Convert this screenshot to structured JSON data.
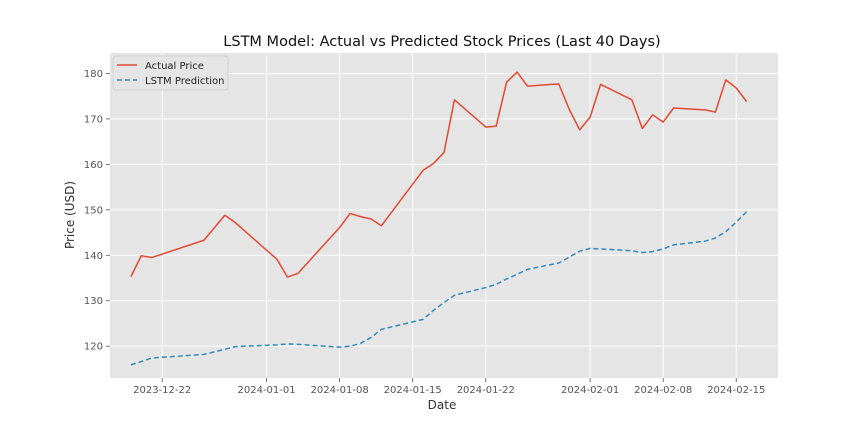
{
  "chart_data": {
    "type": "line",
    "title": "LSTM Model: Actual vs Predicted Stock Prices (Last 40 Days)",
    "xlabel": "Date",
    "ylabel": "Price (USD)",
    "xlim": [
      "2023-12-17",
      "2024-02-19"
    ],
    "ylim": [
      113,
      184.5
    ],
    "x_ticks": [
      {
        "date": "2023-12-22",
        "label": "2023-12-22"
      },
      {
        "date": "2024-01-01",
        "label": "2024-01-01"
      },
      {
        "date": "2024-01-08",
        "label": "2024-01-08"
      },
      {
        "date": "2024-01-15",
        "label": "2024-01-15"
      },
      {
        "date": "2024-01-22",
        "label": "2024-01-22"
      },
      {
        "date": "2024-02-01",
        "label": "2024-02-01"
      },
      {
        "date": "2024-02-08",
        "label": "2024-02-08"
      },
      {
        "date": "2024-02-15",
        "label": "2024-02-15"
      }
    ],
    "y_ticks": [
      120,
      130,
      140,
      150,
      160,
      170,
      180
    ],
    "grid": true,
    "legend_position": "top-left",
    "background": "#e5e5e5",
    "series": [
      {
        "name": "Actual Price",
        "color": "#e24a33",
        "style": "solid",
        "points": [
          {
            "x": "2023-12-19",
            "y": 135.3
          },
          {
            "x": "2023-12-20",
            "y": 139.9
          },
          {
            "x": "2023-12-21",
            "y": 139.5
          },
          {
            "x": "2023-12-26",
            "y": 143.3
          },
          {
            "x": "2023-12-28",
            "y": 148.8
          },
          {
            "x": "2023-12-29",
            "y": 147.2
          },
          {
            "x": "2024-01-02",
            "y": 139.1
          },
          {
            "x": "2024-01-03",
            "y": 135.2
          },
          {
            "x": "2024-01-04",
            "y": 136.0
          },
          {
            "x": "2024-01-08",
            "y": 146.1
          },
          {
            "x": "2024-01-09",
            "y": 149.2
          },
          {
            "x": "2024-01-10",
            "y": 148.5
          },
          {
            "x": "2024-01-11",
            "y": 148.0
          },
          {
            "x": "2024-01-12",
            "y": 146.5
          },
          {
            "x": "2024-01-16",
            "y": 158.7
          },
          {
            "x": "2024-01-17",
            "y": 160.2
          },
          {
            "x": "2024-01-18",
            "y": 162.6
          },
          {
            "x": "2024-01-19",
            "y": 174.2
          },
          {
            "x": "2024-01-22",
            "y": 168.2
          },
          {
            "x": "2024-01-23",
            "y": 168.4
          },
          {
            "x": "2024-01-24",
            "y": 178.1
          },
          {
            "x": "2024-01-25",
            "y": 180.3
          },
          {
            "x": "2024-01-26",
            "y": 177.2
          },
          {
            "x": "2024-01-29",
            "y": 177.7
          },
          {
            "x": "2024-01-30",
            "y": 172.1
          },
          {
            "x": "2024-01-31",
            "y": 167.6
          },
          {
            "x": "2024-02-01",
            "y": 170.4
          },
          {
            "x": "2024-02-02",
            "y": 177.6
          },
          {
            "x": "2024-02-05",
            "y": 174.2
          },
          {
            "x": "2024-02-06",
            "y": 167.9
          },
          {
            "x": "2024-02-07",
            "y": 170.9
          },
          {
            "x": "2024-02-08",
            "y": 169.3
          },
          {
            "x": "2024-02-09",
            "y": 172.4
          },
          {
            "x": "2024-02-12",
            "y": 172.0
          },
          {
            "x": "2024-02-13",
            "y": 171.5
          },
          {
            "x": "2024-02-14",
            "y": 178.6
          },
          {
            "x": "2024-02-15",
            "y": 176.8
          },
          {
            "x": "2024-02-16",
            "y": 173.8
          }
        ]
      },
      {
        "name": "LSTM Prediction",
        "color": "#348abd",
        "style": "dashed",
        "points": [
          {
            "x": "2023-12-19",
            "y": 115.9
          },
          {
            "x": "2023-12-20",
            "y": 116.6
          },
          {
            "x": "2023-12-21",
            "y": 117.4
          },
          {
            "x": "2023-12-26",
            "y": 118.2
          },
          {
            "x": "2023-12-28",
            "y": 119.3
          },
          {
            "x": "2023-12-29",
            "y": 119.9
          },
          {
            "x": "2024-01-02",
            "y": 120.3
          },
          {
            "x": "2024-01-03",
            "y": 120.5
          },
          {
            "x": "2024-01-04",
            "y": 120.4
          },
          {
            "x": "2024-01-08",
            "y": 119.8
          },
          {
            "x": "2024-01-09",
            "y": 120.0
          },
          {
            "x": "2024-01-10",
            "y": 120.6
          },
          {
            "x": "2024-01-11",
            "y": 121.9
          },
          {
            "x": "2024-01-12",
            "y": 123.7
          },
          {
            "x": "2024-01-16",
            "y": 125.9
          },
          {
            "x": "2024-01-17",
            "y": 127.9
          },
          {
            "x": "2024-01-18",
            "y": 129.6
          },
          {
            "x": "2024-01-19",
            "y": 131.2
          },
          {
            "x": "2024-01-22",
            "y": 132.9
          },
          {
            "x": "2024-01-23",
            "y": 133.6
          },
          {
            "x": "2024-01-24",
            "y": 134.8
          },
          {
            "x": "2024-01-25",
            "y": 135.8
          },
          {
            "x": "2024-01-26",
            "y": 136.9
          },
          {
            "x": "2024-01-29",
            "y": 138.3
          },
          {
            "x": "2024-01-30",
            "y": 139.6
          },
          {
            "x": "2024-01-31",
            "y": 140.9
          },
          {
            "x": "2024-02-01",
            "y": 141.5
          },
          {
            "x": "2024-02-02",
            "y": 141.4
          },
          {
            "x": "2024-02-05",
            "y": 141.0
          },
          {
            "x": "2024-02-06",
            "y": 140.6
          },
          {
            "x": "2024-02-07",
            "y": 140.8
          },
          {
            "x": "2024-02-08",
            "y": 141.4
          },
          {
            "x": "2024-02-09",
            "y": 142.3
          },
          {
            "x": "2024-02-12",
            "y": 143.1
          },
          {
            "x": "2024-02-13",
            "y": 143.8
          },
          {
            "x": "2024-02-14",
            "y": 145.2
          },
          {
            "x": "2024-02-15",
            "y": 147.3
          },
          {
            "x": "2024-02-16",
            "y": 149.6
          }
        ]
      }
    ]
  }
}
